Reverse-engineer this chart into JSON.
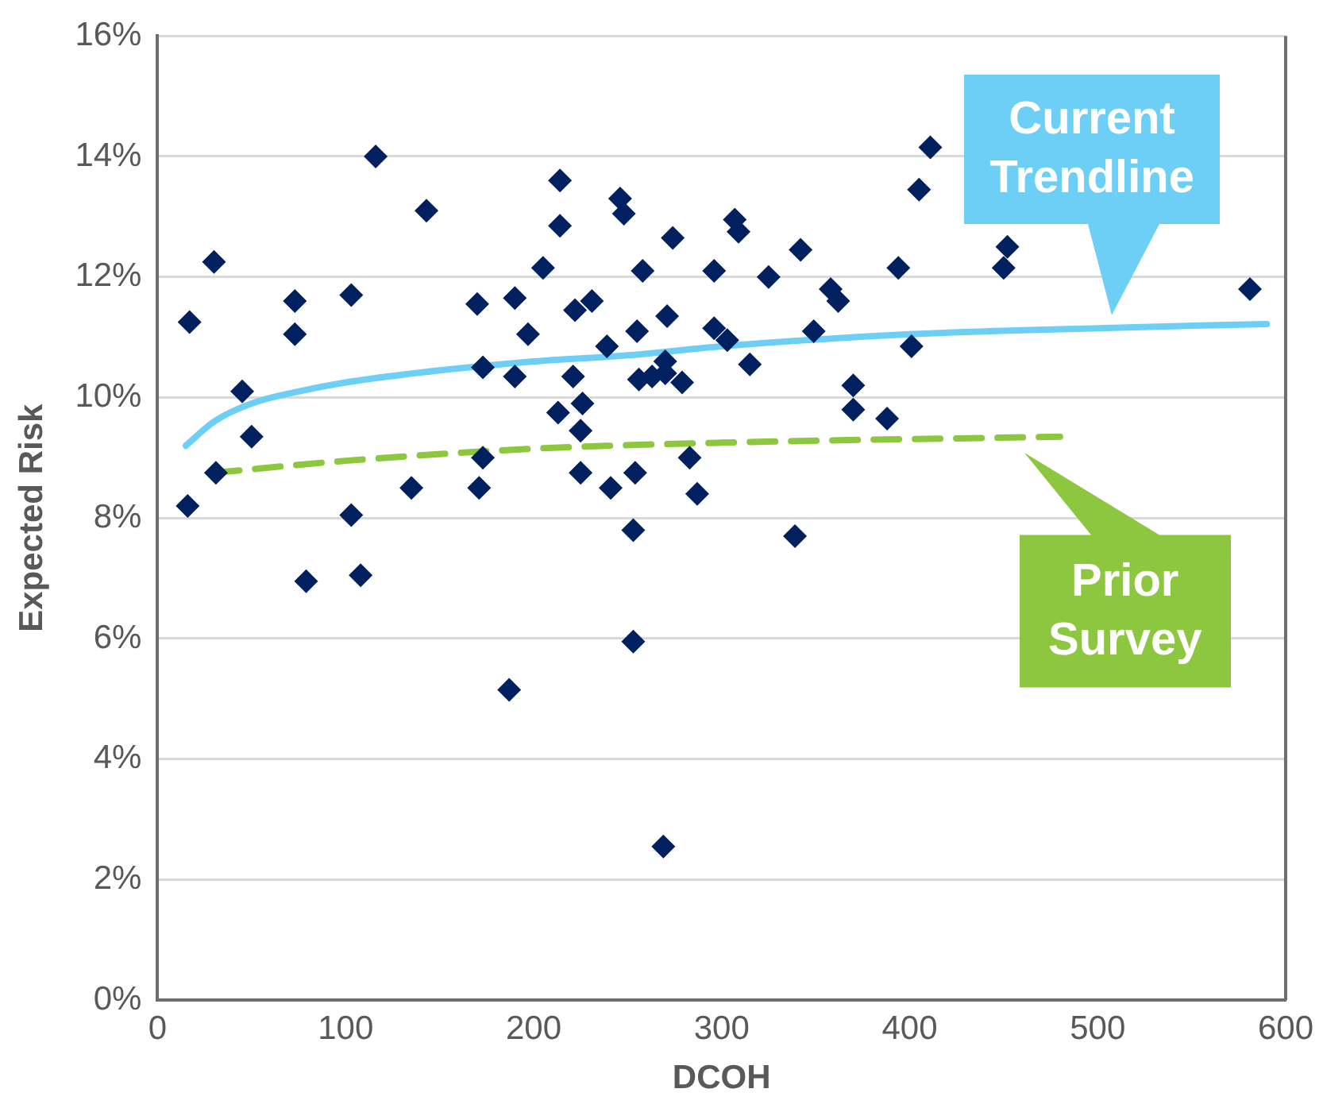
{
  "chart_data": {
    "type": "scatter",
    "xlabel": "DCOH",
    "ylabel": "Expected Risk",
    "xlim": [
      0,
      600
    ],
    "xticks": [
      0,
      100,
      200,
      300,
      400,
      500,
      600
    ],
    "ylim": [
      0,
      16
    ],
    "yticks": [
      {
        "value": 0,
        "label": "0%"
      },
      {
        "value": 2,
        "label": "2%"
      },
      {
        "value": 4,
        "label": "4%"
      },
      {
        "value": 6,
        "label": "6%"
      },
      {
        "value": 8,
        "label": "8%"
      },
      {
        "value": 10,
        "label": "10%"
      },
      {
        "value": 12,
        "label": "12%"
      },
      {
        "value": 14,
        "label": "14%"
      },
      {
        "value": 16,
        "label": "16%"
      }
    ],
    "grid": "y",
    "legend": "right",
    "marker": "diamond",
    "series": [
      {
        "color": "#002060",
        "x": [
          16,
          17,
          30,
          31,
          45,
          50,
          73,
          73,
          79,
          103,
          103,
          108,
          116,
          143,
          135,
          170,
          173,
          173,
          171,
          190,
          190,
          187,
          197,
          205,
          214,
          214,
          213,
          221,
          222,
          225,
          226,
          225,
          231,
          241,
          239,
          246,
          248,
          253,
          253,
          254,
          255,
          258,
          256,
          263,
          270,
          271,
          274,
          269,
          270,
          279,
          283,
          287,
          296,
          296,
          307,
          309,
          303,
          315,
          325,
          339,
          342,
          349,
          358,
          362,
          370,
          370,
          388,
          394,
          401,
          405,
          411,
          452,
          450,
          581
        ],
        "values": [
          8.2,
          11.25,
          12.25,
          8.75,
          10.1,
          9.35,
          11.6,
          11.05,
          6.95,
          11.7,
          8.05,
          7.05,
          14.0,
          13.1,
          8.5,
          11.55,
          10.5,
          9.0,
          8.5,
          11.65,
          10.35,
          5.15,
          11.05,
          12.15,
          13.6,
          12.85,
          9.75,
          10.35,
          11.45,
          9.45,
          9.9,
          8.75,
          11.6,
          8.5,
          10.85,
          13.3,
          13.05,
          7.8,
          5.95,
          8.75,
          11.1,
          12.1,
          10.3,
          10.35,
          10.6,
          11.35,
          12.65,
          2.55,
          10.4,
          10.25,
          9.0,
          8.4,
          12.1,
          11.15,
          12.95,
          12.75,
          10.95,
          10.55,
          12.0,
          7.7,
          12.45,
          11.1,
          11.8,
          11.6,
          10.2,
          9.8,
          9.65,
          12.15,
          10.85,
          13.45,
          14.15,
          12.5,
          12.15,
          11.8
        ]
      },
      {
        "type": "line",
        "name": "Current Trendline",
        "color": "#6dcff6",
        "marker": "none",
        "line_style": "solid",
        "x": [
          15,
          30,
          50,
          75,
          100,
          150,
          200,
          250,
          300,
          400,
          500,
          590
        ],
        "values": [
          9.2,
          9.6,
          9.9,
          10.1,
          10.25,
          10.45,
          10.6,
          10.7,
          10.85,
          11.05,
          11.15,
          11.22
        ]
      },
      {
        "type": "line",
        "name": "Prior Survey",
        "color": "#8dc63f",
        "marker": "none",
        "line_style": "dashed",
        "x": [
          30,
          100,
          200,
          300,
          480
        ],
        "values": [
          8.75,
          8.95,
          9.15,
          9.25,
          9.35
        ]
      }
    ]
  }
}
